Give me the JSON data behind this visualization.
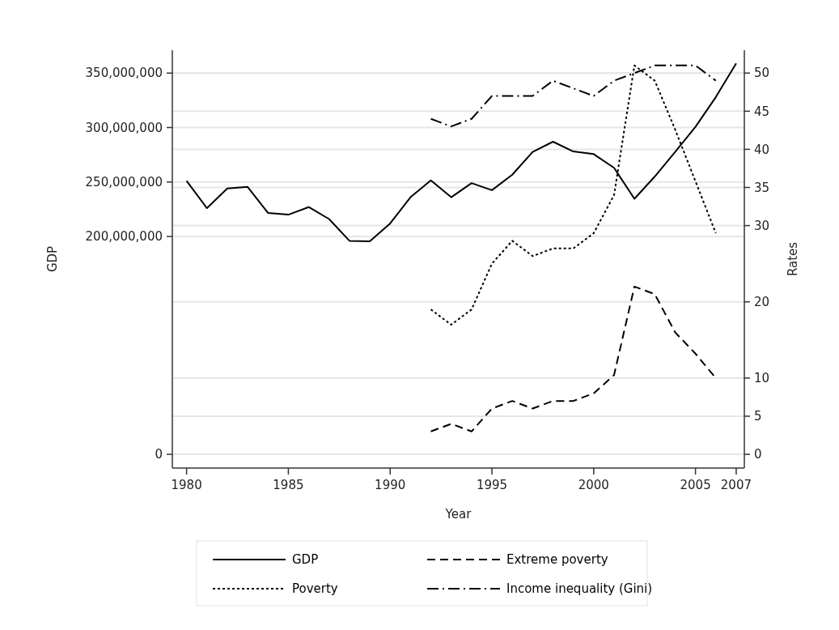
{
  "chart_data": {
    "type": "line",
    "xlabel": "Year",
    "ylabel": "GDP",
    "y2label": "Rates",
    "xlim": [
      1979.3,
      2007.4
    ],
    "xticks": [
      1980,
      1985,
      1990,
      1995,
      2000,
      2005,
      2007
    ],
    "ylim": [
      -12600000,
      371000000
    ],
    "yticks": [
      {
        "value": 0,
        "label": "0"
      },
      {
        "value": 200000000,
        "label": "200,000,000"
      },
      {
        "value": 250000000,
        "label": "250,000,000"
      },
      {
        "value": 300000000,
        "label": "300,000,000"
      },
      {
        "value": 350000000,
        "label": "350,000,000"
      }
    ],
    "y2lim": [
      -1.8,
      53
    ],
    "y2ticks": [
      0,
      5,
      10,
      20,
      30,
      35,
      40,
      45,
      50
    ],
    "grid": true,
    "legend": "bottom",
    "marker": "none",
    "series": [
      {
        "name": "GDP",
        "color": "#000000",
        "line_style": "solid",
        "x": [
          1980,
          1981,
          1982,
          1983,
          1984,
          1985,
          1986,
          1987,
          1988,
          1989,
          1990,
          1991,
          1992,
          1993,
          1994,
          1995,
          1996,
          1997,
          1998,
          1999,
          2000,
          2001,
          2002,
          2003,
          2004,
          2005,
          2006,
          2007
        ],
        "values": [
          251000000,
          226000000,
          244000000,
          245500000,
          221600000,
          220000000,
          227000000,
          216000000,
          196000000,
          195500000,
          212000000,
          236000000,
          251500000,
          236000000,
          249000000,
          242500000,
          256700000,
          277600000,
          287000000,
          278000000,
          275600000,
          263000000,
          234600000,
          255000000,
          277600000,
          300700000,
          328000000,
          359000000
        ]
      },
      {
        "name": "Extreme poverty",
        "color": "#000000",
        "line_style": "dashed",
        "axis": "y2",
        "x": [
          1992,
          1993,
          1994,
          1995,
          1996,
          1997,
          1998,
          1999,
          2000,
          2001,
          2002,
          2003,
          2004,
          2005,
          2006
        ],
        "values": [
          3,
          4,
          3,
          6,
          7,
          6,
          7,
          7,
          8,
          10.4,
          22,
          21,
          16,
          13.2,
          10
        ]
      },
      {
        "name": "Poverty",
        "color": "#000000",
        "line_style": "dotted",
        "axis": "y2",
        "x": [
          1992,
          1993,
          1994,
          1995,
          1996,
          1997,
          1998,
          1999,
          2000,
          2001,
          2002,
          2003,
          2004,
          2005,
          2006
        ],
        "values": [
          19,
          17,
          19,
          25,
          28,
          26,
          27,
          27,
          29,
          34,
          51,
          49,
          42.6,
          35.8,
          29
        ]
      },
      {
        "name": "Income inequality (Gini)",
        "color": "#000000",
        "line_style": "dashdot",
        "axis": "y2",
        "x": [
          1992,
          1993,
          1994,
          1995,
          1996,
          1997,
          1998,
          1999,
          2000,
          2001,
          2002,
          2003,
          2004,
          2005,
          2006
        ],
        "values": [
          44,
          43,
          44,
          47,
          47,
          47,
          49,
          48,
          47,
          49,
          50,
          51,
          51,
          51,
          49
        ]
      }
    ]
  }
}
